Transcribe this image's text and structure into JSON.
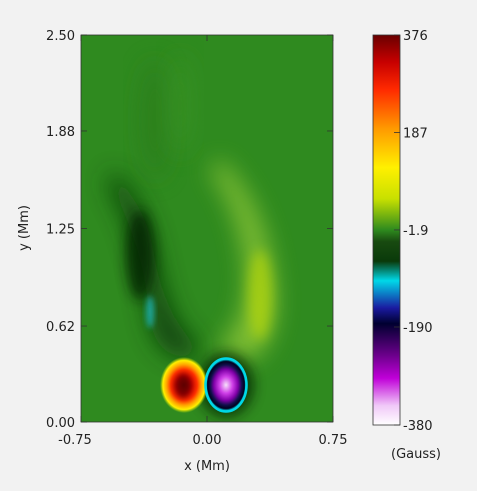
{
  "chart_data": [
    {
      "type": "heatmap",
      "title": "",
      "xlabel": "x (Mm)",
      "ylabel": "y (Mm)",
      "xlim": [
        -0.75,
        0.75
      ],
      "ylim": [
        0.0,
        2.5
      ],
      "x_ticks": [
        "-0.75",
        "0.00",
        "0.75"
      ],
      "y_ticks": [
        "2.50",
        "1.88",
        "1.25",
        "0.62",
        "0.00"
      ],
      "background_value": -1.9,
      "features": [
        {
          "label": "positive polarity core",
          "x": -0.13,
          "y": 0.24,
          "value": 376
        },
        {
          "label": "negative polarity core",
          "x": 0.12,
          "y": 0.24,
          "value": -380
        },
        {
          "label": "weak negative arm",
          "x": -0.28,
          "y": 0.9,
          "value": -120
        },
        {
          "label": "weak positive arm",
          "x": 0.3,
          "y": 0.95,
          "value": 60
        },
        {
          "label": "faint negative streak",
          "x": -0.33,
          "y": 0.68,
          "value": -170
        }
      ]
    },
    {
      "type": "colorbar",
      "tick_labels": [
        "376",
        "187",
        "-1.9",
        "-190",
        "-380"
      ],
      "tick_values": [
        376,
        187,
        -1.9,
        -190,
        -380
      ],
      "range": [
        -380,
        376
      ],
      "unit_label": "(Gauss)",
      "colors": [
        "#6a0000",
        "#c80000",
        "#ff2a00",
        "#ff9a00",
        "#fff000",
        "#c8e000",
        "#2e8a1e",
        "#184a10",
        "#0a3a0a",
        "#00d8e8",
        "#1a1aa0",
        "#000030",
        "#6a008a",
        "#c000d8",
        "#f0c8f8",
        "#ffffff"
      ]
    }
  ]
}
